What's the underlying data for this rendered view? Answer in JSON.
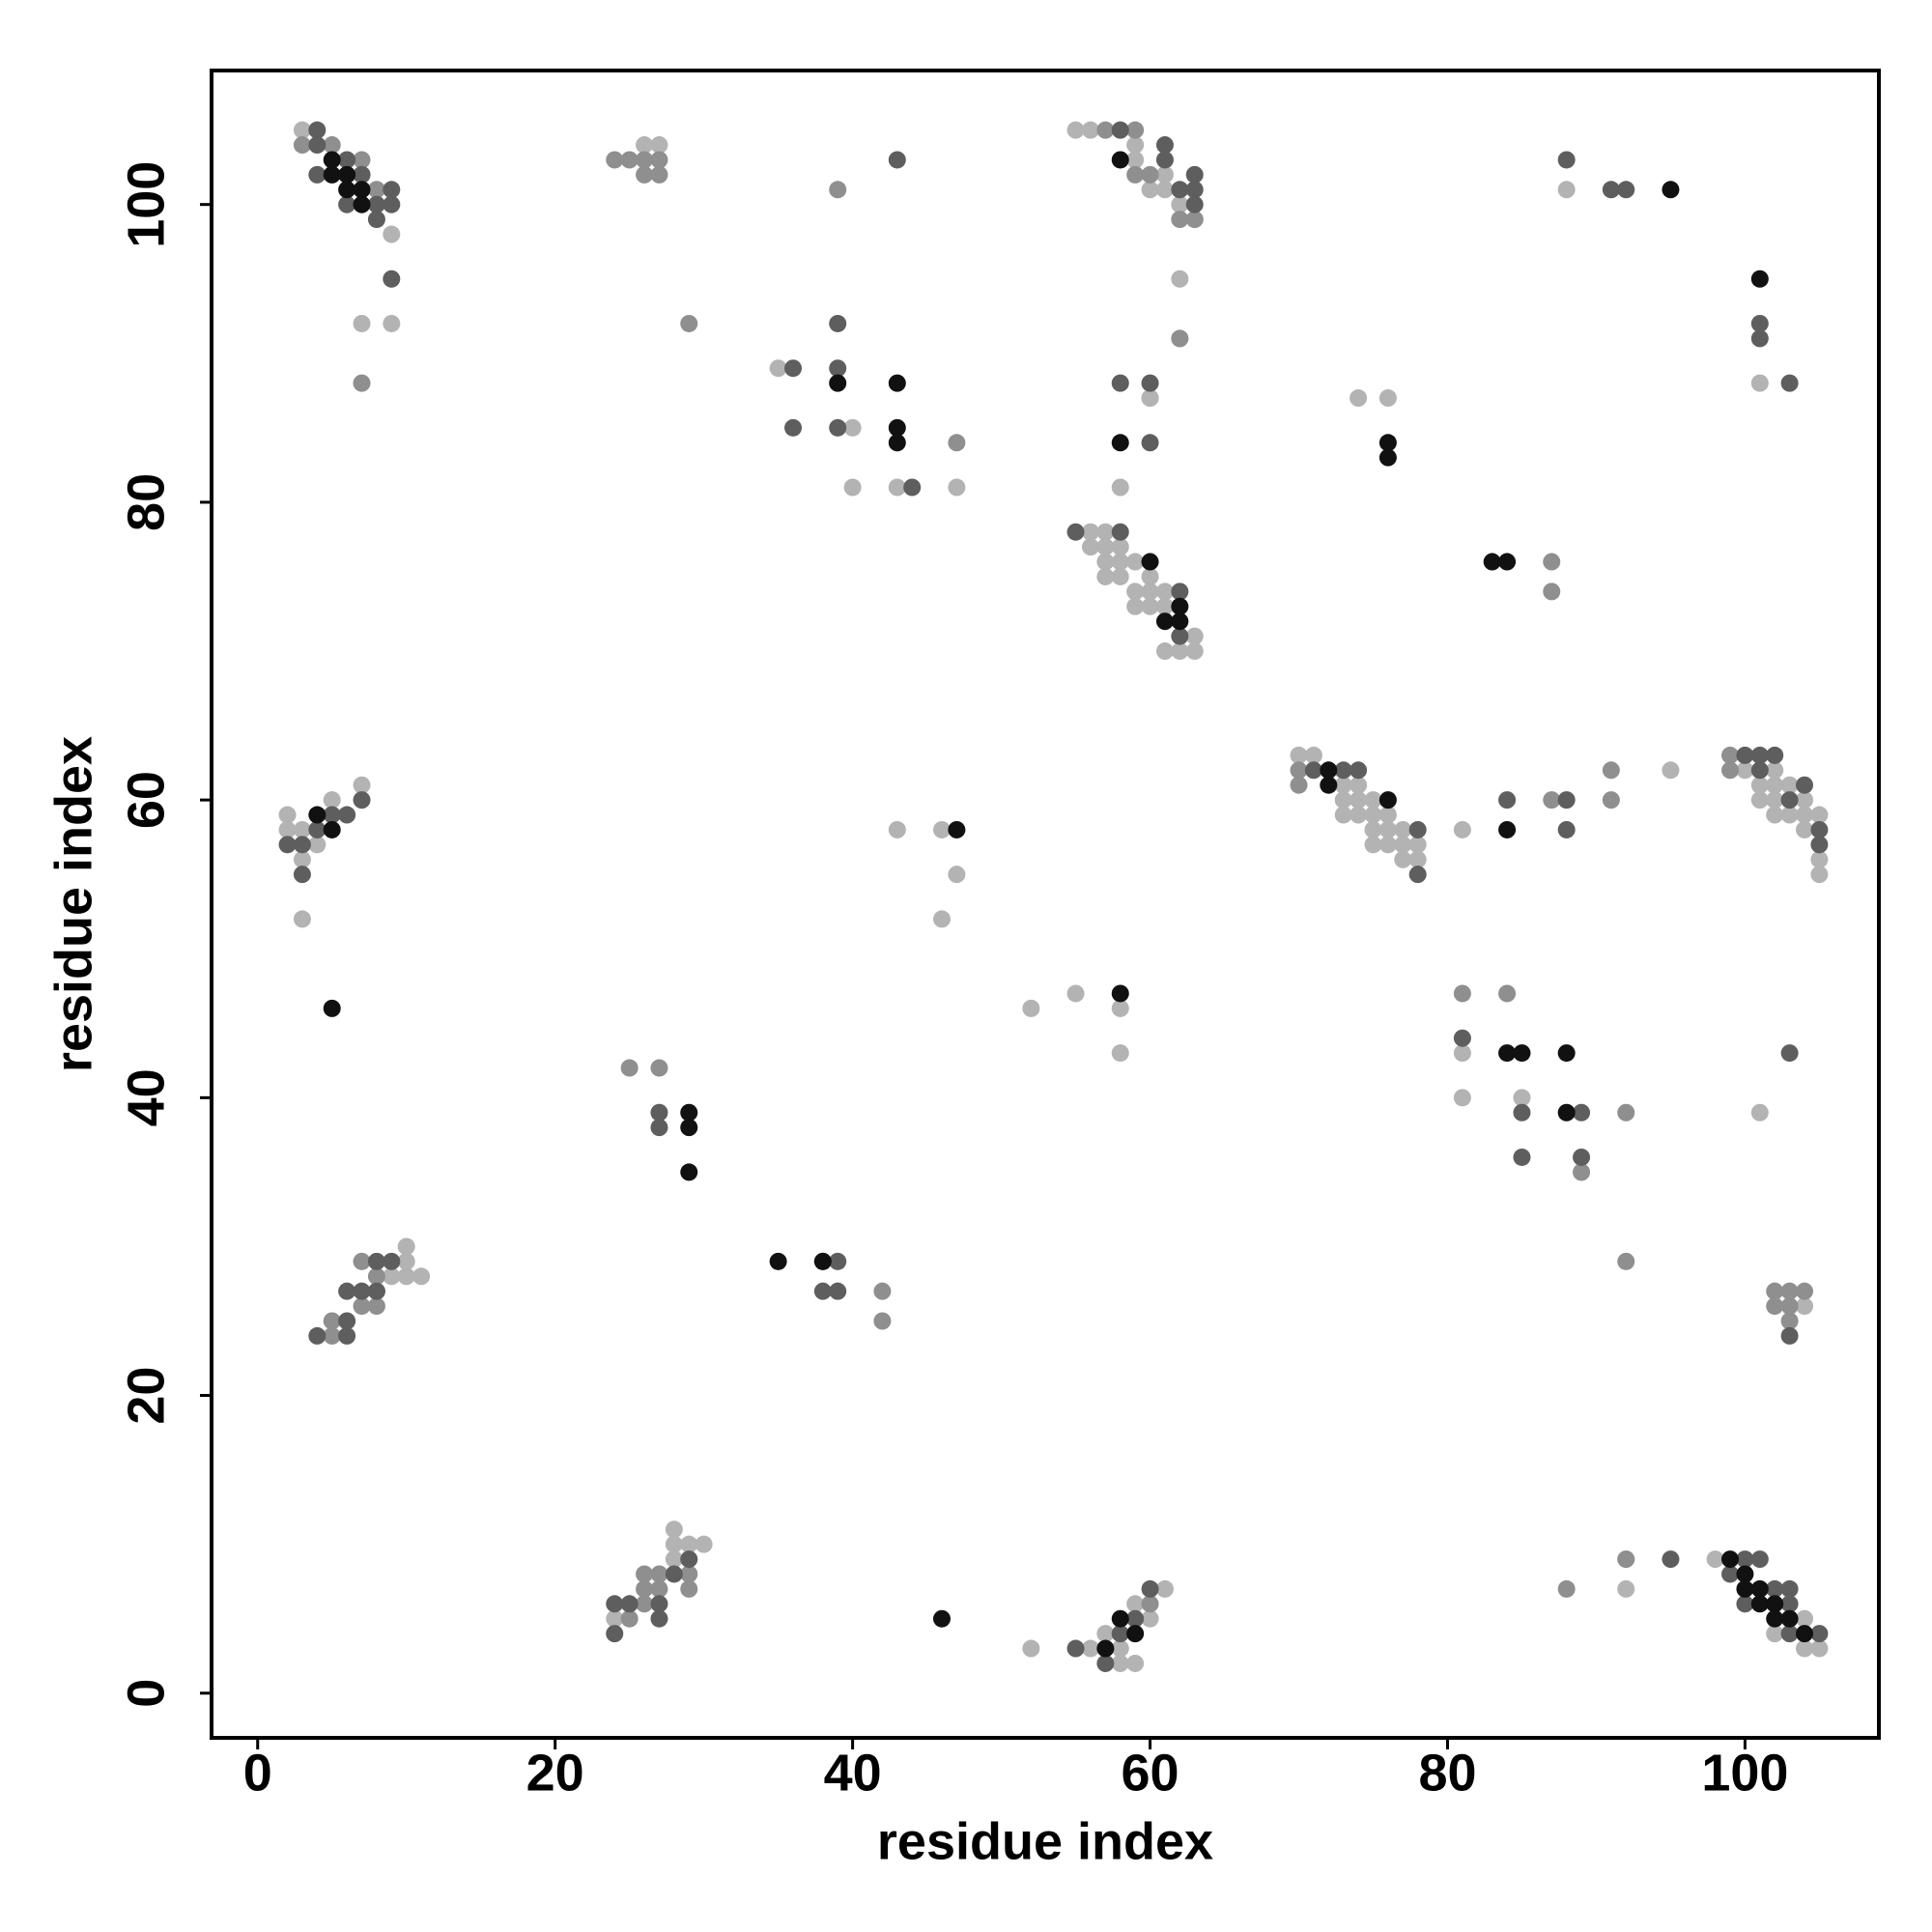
{
  "chart_data": {
    "type": "scatter",
    "xlabel": "residue index",
    "ylabel": "residue index",
    "xlim": [
      -3.1,
      109
    ],
    "ylim": [
      -3,
      109
    ],
    "xticks": [
      0,
      20,
      40,
      60,
      80,
      100
    ],
    "yticks": [
      0,
      20,
      40,
      60,
      80,
      100
    ],
    "series": [
      {
        "color": "#b3b3b3",
        "x": [
          3,
          9,
          7,
          9,
          26,
          27,
          55,
          56,
          59,
          59,
          60,
          61,
          61,
          62,
          63,
          62,
          62,
          60,
          88,
          101,
          35,
          40,
          40,
          43,
          47,
          60,
          58,
          74,
          76,
          56,
          57,
          56,
          57,
          58,
          57,
          58,
          59,
          57,
          58,
          60,
          59,
          60,
          61,
          59,
          60,
          61,
          63,
          61,
          62,
          63,
          2,
          2,
          3,
          4,
          5,
          7,
          3,
          3,
          43,
          46,
          47,
          46,
          70,
          71,
          73,
          74,
          73,
          74,
          75,
          73,
          74,
          75,
          76,
          75,
          76,
          77,
          75,
          76,
          77,
          78,
          77,
          78,
          81,
          95,
          100,
          102,
          101,
          102,
          103,
          101,
          102,
          104,
          102,
          103,
          104,
          105,
          104,
          105,
          105,
          52,
          55,
          58,
          58,
          81,
          81,
          85,
          89,
          101,
          9,
          10,
          11,
          10,
          10,
          104,
          24,
          28,
          28,
          28,
          29,
          30,
          52,
          56,
          57,
          58,
          59,
          58,
          59,
          60,
          61,
          92,
          92,
          98,
          104,
          102,
          104,
          105
        ],
        "y": [
          105,
          98,
          92,
          92,
          104,
          104,
          105,
          105,
          104,
          103,
          101,
          101,
          102,
          100,
          99,
          95,
          91,
          87,
          101,
          88,
          89,
          85,
          81,
          81,
          81,
          87,
          81,
          87,
          87,
          78,
          78,
          77,
          77,
          77,
          76,
          76,
          76,
          75,
          75,
          75,
          74,
          74,
          74,
          73,
          73,
          73,
          71,
          70,
          70,
          70,
          59,
          58,
          58,
          57,
          60,
          61,
          56,
          52,
          58,
          58,
          55,
          52,
          63,
          63,
          61,
          61,
          60,
          60,
          60,
          59,
          59,
          59,
          59,
          58,
          58,
          58,
          57,
          57,
          57,
          57,
          56,
          56,
          58,
          62,
          62,
          62,
          61,
          61,
          61,
          60,
          60,
          60,
          59,
          59,
          59,
          59,
          58,
          56,
          55,
          46,
          47,
          46,
          43,
          43,
          40,
          40,
          35,
          39,
          28,
          28,
          28,
          29,
          30,
          26,
          5,
          9,
          10,
          11,
          10,
          10,
          3,
          3,
          4,
          2,
          2,
          3,
          6,
          5,
          7,
          9,
          7,
          9,
          5,
          4,
          3,
          3
        ]
      },
      {
        "color": "#8f8f8f",
        "x": [
          3,
          5,
          7,
          8,
          7,
          24,
          25,
          26,
          26,
          27,
          27,
          29,
          39,
          57,
          59,
          59,
          60,
          62,
          63,
          62,
          47,
          87,
          87,
          70,
          70,
          87,
          91,
          91,
          99,
          99,
          81,
          84,
          92,
          89,
          92,
          25,
          27,
          42,
          42,
          5,
          5,
          7,
          8,
          8,
          7,
          8,
          102,
          103,
          104,
          102,
          103,
          103,
          26,
          25,
          26,
          27,
          26,
          27,
          29,
          29,
          60,
          88,
          92
        ],
        "y": [
          104,
          104,
          103,
          101,
          88,
          103,
          103,
          103,
          102,
          102,
          103,
          92,
          101,
          105,
          105,
          102,
          102,
          99,
          99,
          91,
          84,
          76,
          74,
          62,
          61,
          60,
          62,
          60,
          63,
          62,
          47,
          47,
          39,
          35,
          29,
          42,
          42,
          27,
          25,
          24,
          25,
          29,
          28,
          26,
          26,
          27,
          27,
          27,
          27,
          26,
          26,
          25,
          6,
          5,
          7,
          8,
          8,
          7,
          8,
          7,
          6,
          7,
          9
        ]
      },
      {
        "color": "#5e5e5e",
        "x": [
          4,
          4,
          6,
          4,
          7,
          7,
          9,
          6,
          8,
          9,
          8,
          9,
          43,
          58,
          61,
          61,
          62,
          63,
          63,
          63,
          88,
          91,
          92,
          101,
          101,
          103,
          36,
          39,
          39,
          39,
          36,
          44,
          58,
          60,
          60,
          55,
          58,
          62,
          62,
          2,
          3,
          4,
          5,
          6,
          7,
          3,
          71,
          73,
          74,
          78,
          78,
          84,
          88,
          88,
          100,
          101,
          102,
          101,
          104,
          103,
          105,
          105,
          81,
          85,
          89,
          85,
          89,
          103,
          27,
          27,
          4,
          6,
          6,
          6,
          7,
          8,
          8,
          9,
          38,
          39,
          38,
          39,
          103,
          24,
          25,
          24,
          27,
          27,
          28,
          29,
          55,
          57,
          58,
          59,
          60,
          95,
          100,
          101,
          99,
          102,
          103,
          100,
          103,
          103,
          105
        ],
        "y": [
          105,
          104,
          103,
          102,
          102,
          102,
          101,
          100,
          100,
          100,
          99,
          95,
          103,
          105,
          103,
          104,
          101,
          102,
          101,
          100,
          103,
          101,
          101,
          92,
          91,
          88,
          89,
          89,
          92,
          85,
          85,
          81,
          88,
          88,
          84,
          78,
          78,
          74,
          71,
          57,
          57,
          58,
          59,
          59,
          60,
          55,
          62,
          62,
          62,
          58,
          55,
          60,
          60,
          58,
          63,
          63,
          63,
          62,
          61,
          60,
          58,
          57,
          44,
          39,
          39,
          36,
          36,
          43,
          39,
          38,
          24,
          24,
          25,
          27,
          27,
          27,
          29,
          29,
          29,
          29,
          27,
          27,
          24,
          6,
          6,
          4,
          6,
          5,
          8,
          9,
          3,
          2,
          4,
          5,
          7,
          9,
          9,
          9,
          8,
          7,
          7,
          6,
          6,
          4,
          4
        ]
      },
      {
        "color": "#111111",
        "x": [
          5,
          5,
          6,
          6,
          7,
          7,
          58,
          95,
          101,
          39,
          43,
          43,
          43,
          58,
          76,
          76,
          60,
          62,
          61,
          62,
          83,
          84,
          4,
          5,
          5,
          47,
          72,
          72,
          76,
          84,
          58,
          84,
          85,
          88,
          88,
          29,
          29,
          29,
          35,
          38,
          46,
          57,
          58,
          59,
          99,
          100,
          100,
          101,
          101,
          102,
          102,
          103,
          104
        ],
        "y": [
          103,
          102,
          102,
          101,
          101,
          100,
          103,
          101,
          95,
          88,
          88,
          85,
          84,
          84,
          84,
          83,
          76,
          73,
          72,
          72,
          76,
          76,
          59,
          58,
          46,
          58,
          62,
          61,
          60,
          58,
          47,
          43,
          43,
          43,
          39,
          39,
          38,
          35,
          29,
          29,
          5,
          3,
          5,
          4,
          9,
          8,
          7,
          7,
          6,
          6,
          5,
          5,
          4
        ]
      }
    ]
  }
}
